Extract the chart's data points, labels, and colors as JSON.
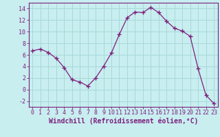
{
  "x": [
    0,
    1,
    2,
    3,
    4,
    5,
    6,
    7,
    8,
    9,
    10,
    11,
    12,
    13,
    14,
    15,
    16,
    17,
    18,
    19,
    20,
    21,
    22,
    23
  ],
  "y": [
    6.7,
    7.0,
    6.4,
    5.4,
    3.8,
    1.7,
    1.3,
    0.6,
    2.0,
    4.0,
    6.3,
    9.5,
    12.4,
    13.4,
    13.3,
    14.2,
    13.3,
    11.8,
    10.6,
    10.1,
    9.2,
    3.6,
    -1.0,
    -2.4
  ],
  "line_color": "#7B1F7B",
  "marker_color": "#7B1F7B",
  "bg_color": "#C8EEF0",
  "grid_color": "#A8D8D8",
  "xlabel": "Windchill (Refroidissement éolien,°C)",
  "xlabel_color": "#7B1F7B",
  "ylim": [
    -3,
    15
  ],
  "xlim": [
    -0.5,
    23.5
  ],
  "yticks": [
    -2,
    0,
    2,
    4,
    6,
    8,
    10,
    12,
    14
  ],
  "xticks": [
    0,
    1,
    2,
    3,
    4,
    5,
    6,
    7,
    8,
    9,
    10,
    11,
    12,
    13,
    14,
    15,
    16,
    17,
    18,
    19,
    20,
    21,
    22,
    23
  ],
  "tick_fontsize": 6.0,
  "xlabel_fontsize": 7.0
}
